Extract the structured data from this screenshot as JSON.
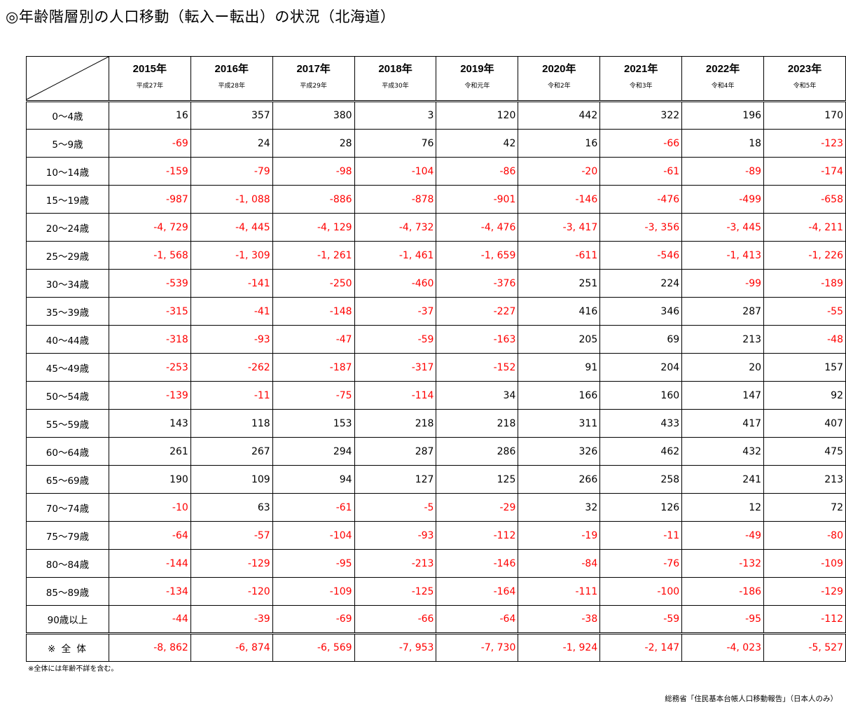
{
  "title": "◎年齢階層別の人口移動（転入ー転出）の状況（北海道）",
  "header": {
    "years": [
      {
        "year": "2015年",
        "era": "平成27年"
      },
      {
        "year": "2016年",
        "era": "平成28年"
      },
      {
        "year": "2017年",
        "era": "平成29年"
      },
      {
        "year": "2018年",
        "era": "平成30年"
      },
      {
        "year": "2019年",
        "era": "令和元年"
      },
      {
        "year": "2020年",
        "era": "令和2年"
      },
      {
        "year": "2021年",
        "era": "令和3年"
      },
      {
        "year": "2022年",
        "era": "令和4年"
      },
      {
        "year": "2023年",
        "era": "令和5年"
      }
    ]
  },
  "rows": [
    {
      "age": "0～4歳",
      "values": [
        "16",
        "357",
        "380",
        "3",
        "120",
        "442",
        "322",
        "196",
        "170"
      ]
    },
    {
      "age": "5～9歳",
      "values": [
        "-69",
        "24",
        "28",
        "76",
        "42",
        "16",
        "-66",
        "18",
        "-123"
      ]
    },
    {
      "age": "10～14歳",
      "values": [
        "-159",
        "-79",
        "-98",
        "-104",
        "-86",
        "-20",
        "-61",
        "-89",
        "-174"
      ]
    },
    {
      "age": "15～19歳",
      "values": [
        "-987",
        "-1, 088",
        "-886",
        "-878",
        "-901",
        "-146",
        "-476",
        "-499",
        "-658"
      ]
    },
    {
      "age": "20～24歳",
      "values": [
        "-4, 729",
        "-4, 445",
        "-4, 129",
        "-4, 732",
        "-4, 476",
        "-3, 417",
        "-3, 356",
        "-3, 445",
        "-4, 211"
      ]
    },
    {
      "age": "25～29歳",
      "values": [
        "-1, 568",
        "-1, 309",
        "-1, 261",
        "-1, 461",
        "-1, 659",
        "-611",
        "-546",
        "-1, 413",
        "-1, 226"
      ]
    },
    {
      "age": "30～34歳",
      "values": [
        "-539",
        "-141",
        "-250",
        "-460",
        "-376",
        "251",
        "224",
        "-99",
        "-189"
      ]
    },
    {
      "age": "35～39歳",
      "values": [
        "-315",
        "-41",
        "-148",
        "-37",
        "-227",
        "416",
        "346",
        "287",
        "-55"
      ]
    },
    {
      "age": "40～44歳",
      "values": [
        "-318",
        "-93",
        "-47",
        "-59",
        "-163",
        "205",
        "69",
        "213",
        "-48"
      ]
    },
    {
      "age": "45～49歳",
      "values": [
        "-253",
        "-262",
        "-187",
        "-317",
        "-152",
        "91",
        "204",
        "20",
        "157"
      ]
    },
    {
      "age": "50～54歳",
      "values": [
        "-139",
        "-11",
        "-75",
        "-114",
        "34",
        "166",
        "160",
        "147",
        "92"
      ]
    },
    {
      "age": "55～59歳",
      "values": [
        "143",
        "118",
        "153",
        "218",
        "218",
        "311",
        "433",
        "417",
        "407"
      ]
    },
    {
      "age": "60～64歳",
      "values": [
        "261",
        "267",
        "294",
        "287",
        "286",
        "326",
        "462",
        "432",
        "475"
      ]
    },
    {
      "age": "65～69歳",
      "values": [
        "190",
        "109",
        "94",
        "127",
        "125",
        "266",
        "258",
        "241",
        "213"
      ]
    },
    {
      "age": "70～74歳",
      "values": [
        "-10",
        "63",
        "-61",
        "-5",
        "-29",
        "32",
        "126",
        "12",
        "72"
      ]
    },
    {
      "age": "75～79歳",
      "values": [
        "-64",
        "-57",
        "-104",
        "-93",
        "-112",
        "-19",
        "-11",
        "-49",
        "-80"
      ]
    },
    {
      "age": "80～84歳",
      "values": [
        "-144",
        "-129",
        "-95",
        "-213",
        "-146",
        "-84",
        "-76",
        "-132",
        "-109"
      ]
    },
    {
      "age": "85～89歳",
      "values": [
        "-134",
        "-120",
        "-109",
        "-125",
        "-164",
        "-111",
        "-100",
        "-186",
        "-129"
      ]
    },
    {
      "age": "90歳以上",
      "values": [
        "-44",
        "-39",
        "-69",
        "-66",
        "-64",
        "-38",
        "-59",
        "-95",
        "-112"
      ]
    }
  ],
  "total": {
    "label": "※ 全 体",
    "values": [
      "-8, 862",
      "-6, 874",
      "-6, 569",
      "-7, 953",
      "-7, 730",
      "-1, 924",
      "-2, 147",
      "-4, 023",
      "-5, 527"
    ]
  },
  "footnote": "※全体には年齢不詳を含む。",
  "source": "総務省「住民基本台帳人口移動報告」（日本人のみ）",
  "colors": {
    "negative": "#ff0000",
    "positive": "#000000"
  }
}
